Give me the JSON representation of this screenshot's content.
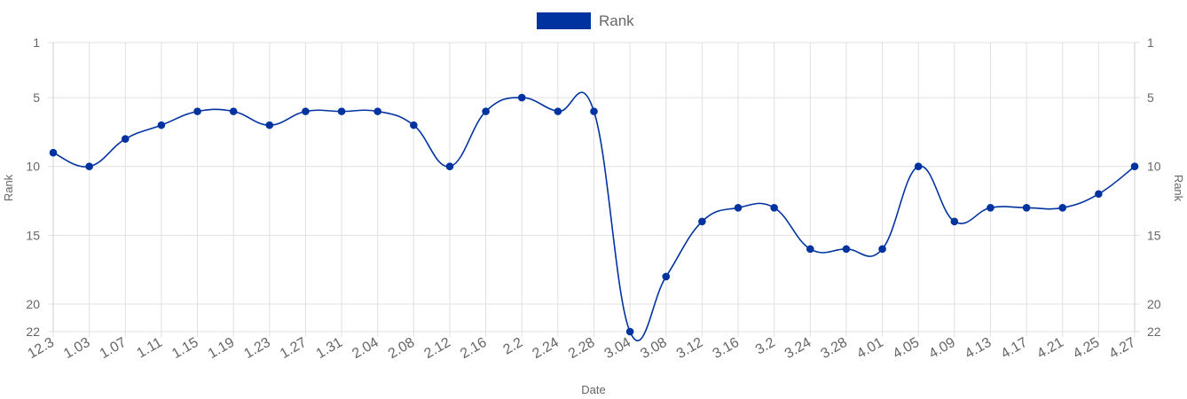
{
  "chart_data": {
    "type": "line",
    "title": "",
    "legend": {
      "label": "Rank",
      "position": "top"
    },
    "xlabel": "Date",
    "ylabel": "Rank",
    "ylabel_right": "Rank",
    "y_reversed": true,
    "ylim": [
      1,
      22
    ],
    "yticks": [
      1,
      5,
      10,
      15,
      20,
      22
    ],
    "grid": true,
    "colors": {
      "series": "#0033A0",
      "grid": "#e0e0e0",
      "text": "#666666"
    },
    "categories": [
      "12.3",
      "1.03",
      "1.07",
      "1.11",
      "1.15",
      "1.19",
      "1.23",
      "1.27",
      "1.31",
      "2.04",
      "2.08",
      "2.12",
      "2.16",
      "2.2",
      "2.24",
      "2.28",
      "3.04",
      "3.08",
      "3.12",
      "3.16",
      "3.2",
      "3.24",
      "3.28",
      "4.01",
      "4.05",
      "4.09",
      "4.13",
      "4.17",
      "4.21",
      "4.25",
      "4.27"
    ],
    "series": [
      {
        "name": "Rank",
        "values": [
          9,
          10,
          8,
          7,
          6,
          6,
          7,
          6,
          6,
          6,
          7,
          10,
          6,
          5,
          6,
          6,
          22,
          18,
          14,
          13,
          13,
          16,
          16,
          16,
          10,
          14,
          13,
          13,
          13,
          12,
          10
        ]
      }
    ]
  }
}
